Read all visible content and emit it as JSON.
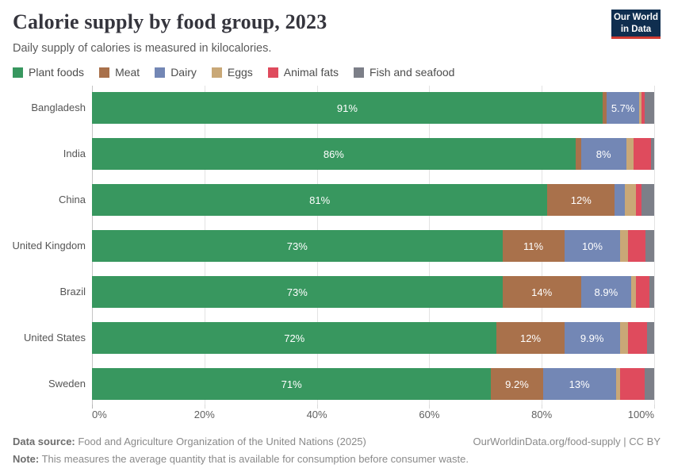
{
  "header": {
    "title": "Calorie supply by food group, 2023",
    "subtitle": "Daily supply of calories is measured in kilocalories.",
    "logo_line1": "Our World",
    "logo_line2": "in Data",
    "logo_bg": "#0f2e4f",
    "logo_accent": "#d13b32"
  },
  "chart_data": {
    "type": "bar",
    "stacked": true,
    "orientation": "horizontal",
    "unit": "%",
    "xlim": [
      0,
      100
    ],
    "grid": true,
    "x_tick_positions": [
      0,
      20,
      40,
      60,
      80,
      100
    ],
    "x_tick_labels": [
      "0%",
      "20%",
      "40%",
      "60%",
      "80%",
      "100%"
    ],
    "categories": [
      "Bangladesh",
      "India",
      "China",
      "United Kingdom",
      "Brazil",
      "United States",
      "Sweden"
    ],
    "series": [
      {
        "name": "Plant foods",
        "color": "#38975f",
        "values": [
          90.8,
          86,
          81,
          73,
          73,
          72,
          71
        ],
        "labels": [
          "91%",
          "86%",
          "81%",
          "73%",
          "73%",
          "72%",
          "71%"
        ]
      },
      {
        "name": "Meat",
        "color": "#a9714b",
        "values": [
          0.8,
          1.0,
          12,
          11,
          14,
          12,
          9.2
        ],
        "labels": [
          "",
          "",
          "12%",
          "11%",
          "14%",
          "12%",
          "9.2%"
        ]
      },
      {
        "name": "Dairy",
        "color": "#7387b5",
        "values": [
          5.7,
          8,
          1.8,
          10,
          8.9,
          9.9,
          13
        ],
        "labels": [
          "5.7%",
          "8%",
          "",
          "10%",
          "8.9%",
          "9.9%",
          "13%"
        ]
      },
      {
        "name": "Eggs",
        "color": "#c9a877",
        "values": [
          0.4,
          1.3,
          2.0,
          1.4,
          0.9,
          1.4,
          0.8
        ],
        "labels": [
          "",
          "",
          "",
          "",
          "",
          "",
          ""
        ]
      },
      {
        "name": "Animal fats",
        "color": "#df4b5d",
        "values": [
          0.6,
          3.1,
          1.0,
          3.0,
          2.4,
          3.5,
          4.3
        ],
        "labels": [
          "",
          "",
          "",
          "",
          "",
          "",
          ""
        ]
      },
      {
        "name": "Fish and seafood",
        "color": "#7c7f88",
        "values": [
          1.7,
          0.6,
          2.2,
          1.6,
          0.8,
          1.2,
          1.7
        ],
        "labels": [
          "",
          "",
          "",
          "",
          "",
          "",
          ""
        ]
      }
    ]
  },
  "footer": {
    "datasource_label": "Data source:",
    "datasource_text": " Food and Agriculture Organization of the United Nations (2025)",
    "link_text": "OurWorldinData.org/food-supply | CC BY",
    "note_label": "Note:",
    "note_text": " This measures the average quantity that is available for consumption before consumer waste."
  }
}
